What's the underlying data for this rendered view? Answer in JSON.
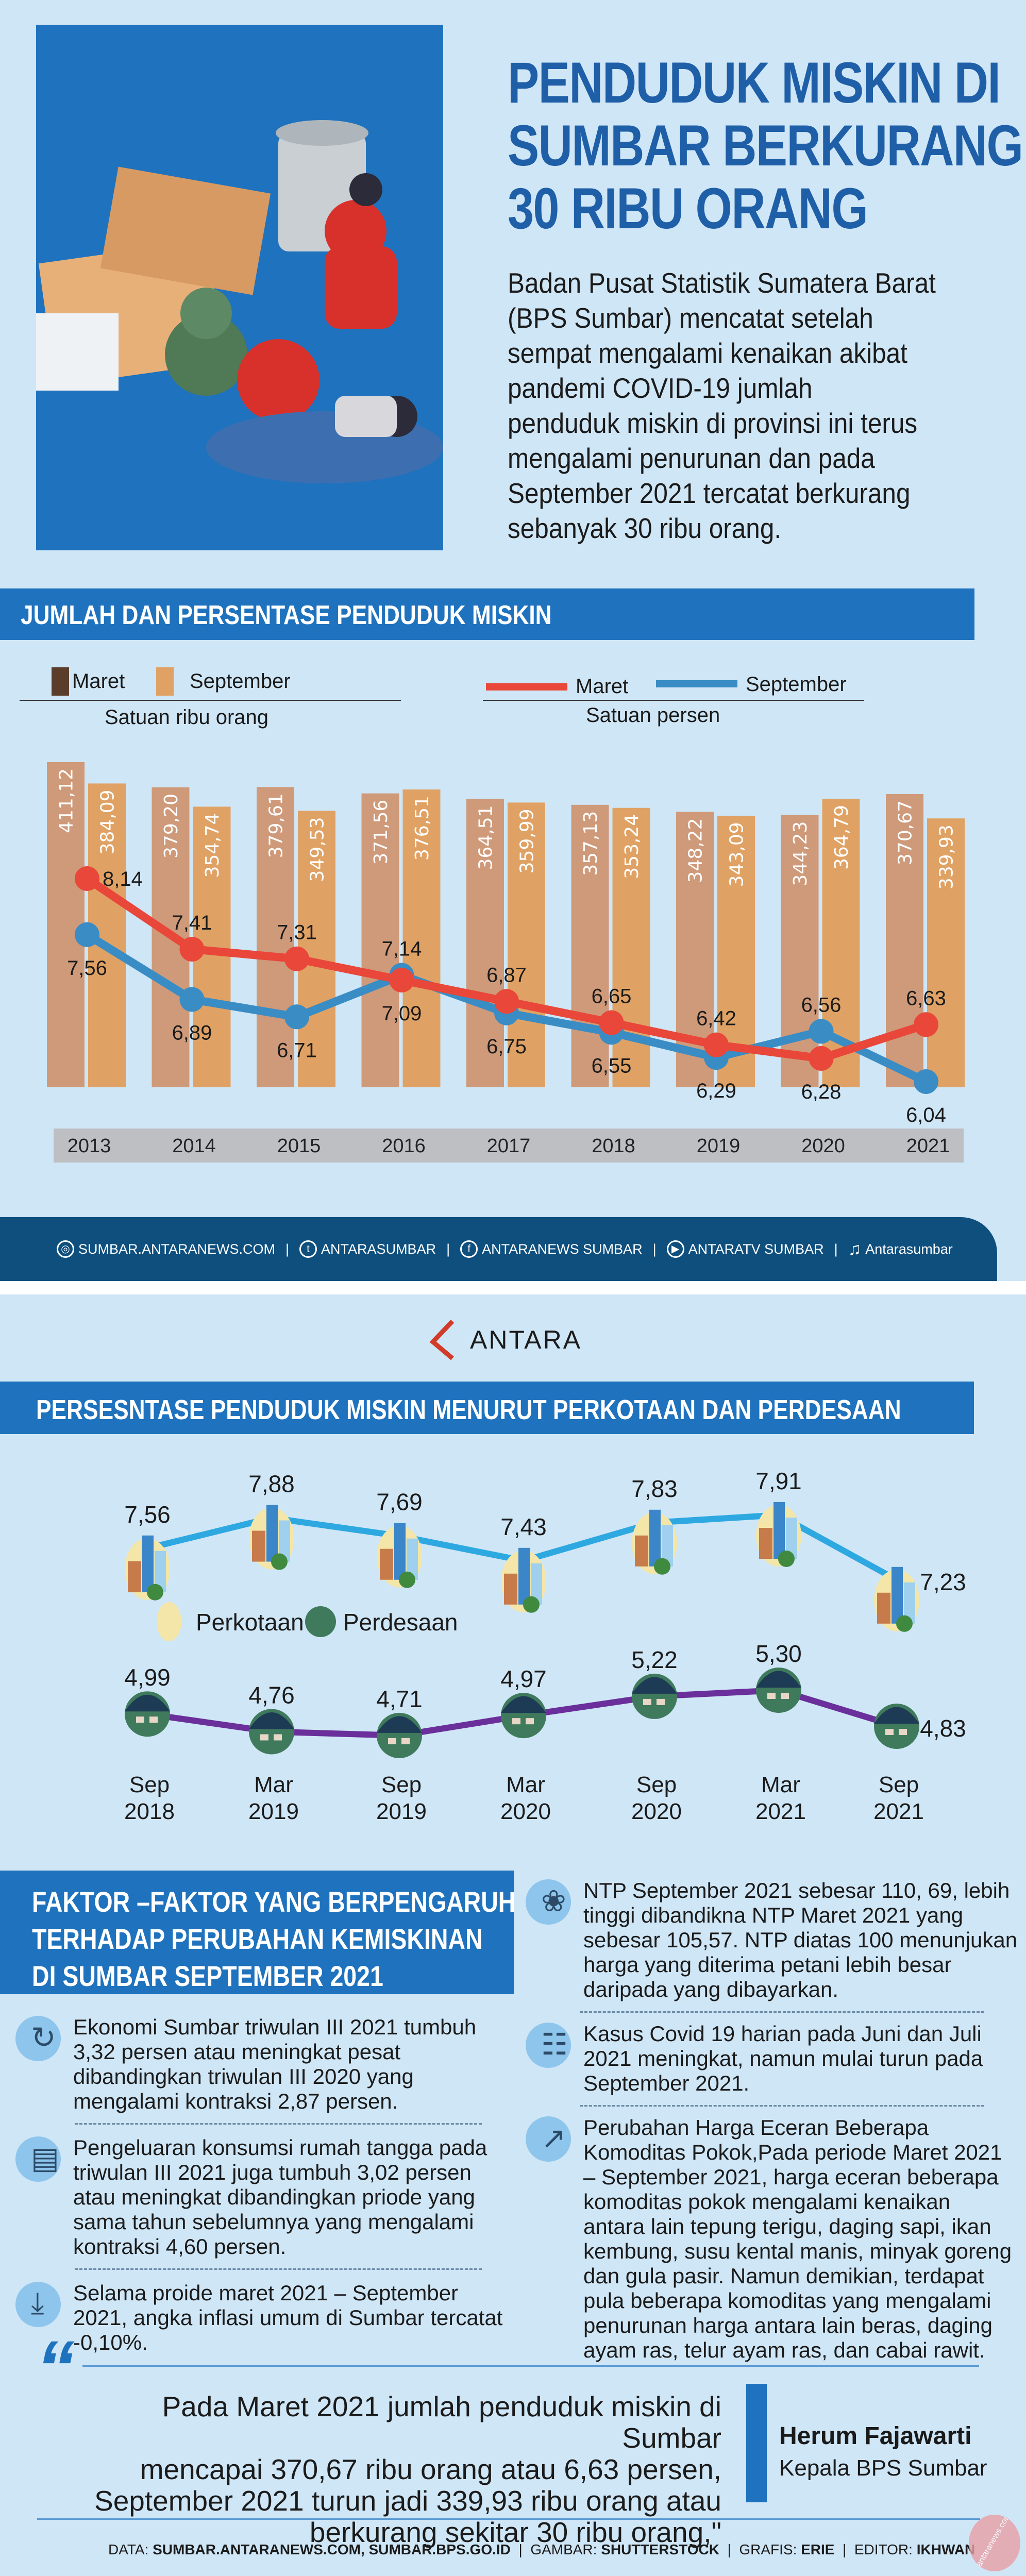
{
  "brand": {
    "name": "ANTARA",
    "accent": "#1f72bd",
    "logo_red": "#d23a2a"
  },
  "header": {
    "title_lines": [
      "PENDUDUK MISKIN DI",
      "SUMBAR BERKURANG",
      "30 RIBU ORANG"
    ],
    "intro_lines": [
      "Badan Pusat Statistik Sumatera Barat",
      "(BPS Sumbar) mencatat setelah",
      "sempat mengalami kenaikan akibat",
      "pandemi COVID-19 jumlah",
      "penduduk miskin di provinsi ini terus",
      "mengalami penurunan dan pada",
      "September 2021 tercatat berkurang",
      "sebanyak 30 ribu orang."
    ]
  },
  "section1": {
    "title": "JUMLAH  DAN PERSENTASE PENDUDUK MISKIN"
  },
  "chart_data": [
    {
      "type": "bar",
      "categories": [
        "2013",
        "2014",
        "2015",
        "2016",
        "2017",
        "2018",
        "2019",
        "2020",
        "2021"
      ],
      "unit_label": "Satuan ribu orang",
      "series": [
        {
          "name": "Maret",
          "color": "#cf9a7a",
          "legend_color": "#5a3e2b",
          "values": [
            411.12,
            379.2,
            379.61,
            371.56,
            364.51,
            357.13,
            348.22,
            344.23,
            370.67
          ],
          "labels": [
            "411,12",
            "379,20",
            "379,61",
            "371,56",
            "364,51",
            "357,13",
            "348,22",
            "344,23",
            "370,67"
          ]
        },
        {
          "name": "September",
          "color": "#e0a264",
          "values": [
            384.09,
            354.74,
            349.53,
            376.51,
            359.99,
            353.24,
            343.09,
            364.79,
            339.93
          ],
          "labels": [
            "384,09",
            "354,74",
            "349,53",
            "376,51",
            "359,99",
            "353,24",
            "343,09",
            "364,79",
            "339,93"
          ]
        }
      ]
    },
    {
      "type": "line",
      "categories": [
        "2013",
        "2014",
        "2015",
        "2016",
        "2017",
        "2018",
        "2019",
        "2020",
        "2021"
      ],
      "unit_label": "Satuan persen",
      "series": [
        {
          "name": "Maret",
          "color": "#e8473a",
          "values": [
            8.14,
            7.41,
            7.31,
            7.09,
            6.87,
            6.65,
            6.42,
            6.28,
            6.63
          ],
          "labels": [
            "8,14",
            "7,41",
            "7,31",
            "7,09",
            "6,87",
            "6,65",
            "6,42",
            "6,28",
            "6,63"
          ]
        },
        {
          "name": "September",
          "color": "#3a8cc4",
          "values": [
            7.56,
            6.89,
            6.71,
            7.14,
            6.75,
            6.55,
            6.29,
            6.56,
            6.04
          ],
          "labels": [
            "7,56",
            "6,89",
            "6,71",
            "7,14",
            "6,75",
            "6,55",
            "6,29",
            "6,56",
            "6,04"
          ]
        }
      ]
    },
    {
      "type": "line",
      "title": "PERSESNTASE PENDUDUK MISKIN MENURUT PERKOTAAN DAN PERDESAAN",
      "categories": [
        [
          "Sep",
          "2018"
        ],
        [
          "Mar",
          "2019"
        ],
        [
          "Sep",
          "2019"
        ],
        [
          "Mar",
          "2020"
        ],
        [
          "Sep",
          "2020"
        ],
        [
          "Mar",
          "2021"
        ],
        [
          "Sep",
          "2021"
        ]
      ],
      "series": [
        {
          "name": "Perkotaan",
          "color": "#2ea8e0",
          "values": [
            7.56,
            7.88,
            7.69,
            7.43,
            7.83,
            7.91,
            7.23
          ],
          "labels": [
            "7,56",
            "7,88",
            "7,69",
            "7,43",
            "7,83",
            "7,91",
            "7,23"
          ]
        },
        {
          "name": "Perdesaan",
          "color": "#6a2f9a",
          "values": [
            4.99,
            4.76,
            4.71,
            4.97,
            5.22,
            5.3,
            4.83
          ],
          "labels": [
            "4,99",
            "4,76",
            "4,71",
            "4,97",
            "5,22",
            "5,30",
            "4,83"
          ]
        }
      ]
    }
  ],
  "social": [
    {
      "icon": "globe-icon",
      "label": "SUMBAR.ANTARANEWS.COM"
    },
    {
      "icon": "twitter-icon",
      "label": "ANTARASUMBAR"
    },
    {
      "icon": "facebook-icon",
      "label": "ANTARANEWS SUMBAR"
    },
    {
      "icon": "youtube-icon",
      "label": "ANTARATV SUMBAR"
    },
    {
      "icon": "tiktok-icon",
      "label": "Antarasumbar"
    }
  ],
  "factors": {
    "title_lines": [
      "FAKTOR –FAKTOR YANG BERPENGARUH",
      "TERHADAP PERUBAHAN KEMISKINAN",
      "DI SUMBAR SEPTEMBER 2021"
    ],
    "left": [
      {
        "icon": "refresh-icon",
        "lines": [
          "Ekonomi Sumbar triwulan III 2021 tumbuh",
          "3,32 persen atau meningkat pesat",
          "dibandingkan triwulan III 2020 yang",
          "mengalami kontraksi 2,87 persen."
        ]
      },
      {
        "icon": "appliance-icon",
        "lines": [
          "Pengeluaran konsumsi rumah tangga pada",
          "triwulan III 2021 juga tumbuh 3,02 persen",
          "atau meningkat dibandingkan priode yang",
          "sama tahun sebelumnya yang mengalami",
          "kontraksi 4,60 persen."
        ]
      },
      {
        "icon": "download-icon",
        "lines": [
          "Selama proide maret  2021 – September",
          "2021, angka inflasi umum di Sumbar tercatat",
          "-0,10%."
        ]
      }
    ],
    "right": [
      {
        "icon": "apple-icon",
        "lines": [
          "NTP  September 2021 sebesar 110, 69, lebih",
          "tinggi dibandikna NTP Maret 2021 yang",
          "sebesar 105,57. NTP diatas 100 menunjukan",
          "harga yang diterima petani lebih besar",
          "daripada yang dibayarkan."
        ]
      },
      {
        "icon": "clipboard-icon",
        "lines": [
          "Kasus Covid 19 harian pada Juni dan Juli",
          "2021 meningkat, namun mulai turun pada",
          "September 2021."
        ]
      },
      {
        "icon": "chart-up-icon",
        "lines": [
          "Perubahan Harga Eceran Beberapa",
          "Komoditas Pokok,Pada periode Maret 2021",
          "– September 2021, harga eceran beberapa",
          "komoditas pokok mengalami kenaikan",
          "antara lain tepung terigu, daging sapi, ikan",
          "kembung, susu kental manis, minyak goreng",
          "dan gula pasir. Namun demikian, terdapat",
          "pula beberapa komoditas yang mengalami",
          "penurunan harga antara lain beras, daging",
          "ayam ras, telur ayam ras, dan cabai rawit."
        ]
      }
    ]
  },
  "quote": {
    "lines": [
      "Pada Maret 2021 jumlah penduduk miskin di Sumbar",
      "mencapai 370,67 ribu orang atau 6,63 persen,",
      "September 2021 turun jadi 339,93 ribu orang atau",
      "berkurang sekitar 30 ribu orang,\""
    ],
    "name": "Herum Fajawarti",
    "role": "Kepala BPS Sumbar"
  },
  "credits": {
    "data_label": "DATA:",
    "data": "SUMBAR.ANTARANEWS.COM, SUMBAR.BPS.GO.ID",
    "image_label": "GAMBAR:",
    "image": "SHUTTERSTOCK",
    "graphic_label": "GRAFIS:",
    "graphic": "ERIE",
    "editor_label": "EDITOR:",
    "editor": "IKHWAN",
    "watermark": "antaranews.com"
  }
}
